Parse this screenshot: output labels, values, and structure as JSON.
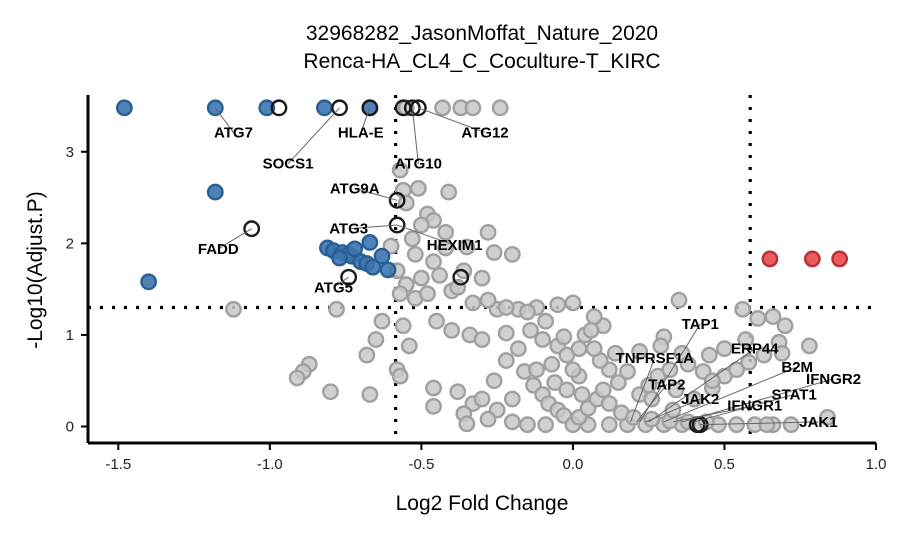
{
  "chart_data": {
    "type": "scatter",
    "title_lines": [
      "32968282_JasonMoffat_Nature_2020",
      "Renca-HA_CL4_C_Coculture-T_KIRC"
    ],
    "xlabel": "Log2 Fold Change",
    "ylabel": "-Log10(Adjust.P)",
    "xlim": [
      -1.6,
      1.0
    ],
    "ylim": [
      -0.18,
      3.62
    ],
    "xticks": [
      -1.5,
      -1.0,
      -0.5,
      0.0,
      0.5,
      1.0
    ],
    "xtick_labels": [
      "-1.5",
      "-1.0",
      "-0.5",
      "0.0",
      "0.5",
      "1.0"
    ],
    "yticks": [
      0,
      1,
      2,
      3
    ],
    "ytick_labels": [
      "0",
      "1",
      "2",
      "3"
    ],
    "thresholds": {
      "x": [
        -0.585,
        0.585
      ],
      "y": 1.3
    },
    "grid": false,
    "legend": "none",
    "colors": {
      "down": "#3a75ae",
      "up": "#e8484d",
      "ns": "#c8c8c8",
      "ns_edge": "#a0a0a0",
      "highlight_edge": "#1a1a1a"
    },
    "groups": [
      {
        "name": "down",
        "points": [
          [
            -1.48,
            3.48
          ],
          [
            -1.18,
            3.48
          ],
          [
            -1.01,
            3.48
          ],
          [
            -0.82,
            3.48
          ],
          [
            -0.67,
            3.48
          ],
          [
            -1.18,
            2.56
          ],
          [
            -0.81,
            1.95
          ],
          [
            -0.79,
            1.92
          ],
          [
            -0.76,
            1.9
          ],
          [
            -0.74,
            1.88
          ],
          [
            -0.73,
            1.86
          ],
          [
            -0.72,
            1.94
          ],
          [
            -0.7,
            1.8
          ],
          [
            -0.68,
            1.78
          ],
          [
            -0.66,
            1.74
          ],
          [
            -0.67,
            2.01
          ],
          [
            -0.61,
            1.71
          ],
          [
            -0.63,
            1.86
          ],
          [
            -1.4,
            1.58
          ],
          [
            -0.77,
            1.84
          ]
        ]
      },
      {
        "name": "up",
        "points": [
          [
            0.65,
            1.83
          ],
          [
            0.79,
            1.83
          ],
          [
            0.88,
            1.83
          ]
        ]
      },
      {
        "name": "ns",
        "points": [
          [
            -0.55,
            3.48
          ],
          [
            -0.37,
            3.48
          ],
          [
            -0.33,
            3.48
          ],
          [
            -0.24,
            3.48
          ],
          [
            -0.43,
            3.48
          ],
          [
            -0.57,
            2.8
          ],
          [
            -0.51,
            2.6
          ],
          [
            -0.41,
            2.56
          ],
          [
            -0.56,
            2.58
          ],
          [
            -0.55,
            2.44
          ],
          [
            -0.48,
            2.32
          ],
          [
            -0.46,
            2.25
          ],
          [
            -0.5,
            2.2
          ],
          [
            -0.53,
            2.05
          ],
          [
            -0.42,
            2.12
          ],
          [
            -0.28,
            2.12
          ],
          [
            -0.6,
            1.97
          ],
          [
            -0.42,
            1.95
          ],
          [
            -0.35,
            1.96
          ],
          [
            -0.26,
            1.9
          ],
          [
            -0.2,
            1.88
          ],
          [
            -0.58,
            1.7
          ],
          [
            -0.55,
            1.55
          ],
          [
            -0.5,
            1.62
          ],
          [
            -0.44,
            1.65
          ],
          [
            -0.36,
            1.7
          ],
          [
            -0.3,
            1.62
          ],
          [
            -0.57,
            1.45
          ],
          [
            -0.52,
            1.4
          ],
          [
            -0.48,
            1.45
          ],
          [
            -0.4,
            1.48
          ],
          [
            -0.33,
            1.35
          ],
          [
            -0.25,
            1.28
          ],
          [
            -0.18,
            1.28
          ],
          [
            -0.12,
            1.3
          ],
          [
            -0.05,
            1.33
          ],
          [
            0.0,
            1.35
          ],
          [
            -1.12,
            1.28
          ],
          [
            -0.78,
            1.28
          ],
          [
            -0.63,
            1.15
          ],
          [
            -0.56,
            1.1
          ],
          [
            -0.45,
            1.15
          ],
          [
            -0.4,
            1.05
          ],
          [
            -0.34,
            1.0
          ],
          [
            -0.3,
            0.95
          ],
          [
            -0.22,
            1.02
          ],
          [
            -0.14,
            1.05
          ],
          [
            -0.65,
            0.95
          ],
          [
            -0.68,
            0.78
          ],
          [
            -0.54,
            0.88
          ],
          [
            -0.58,
            0.62
          ],
          [
            -0.57,
            0.55
          ],
          [
            -0.87,
            0.68
          ],
          [
            -0.89,
            0.6
          ],
          [
            -0.91,
            0.53
          ],
          [
            -0.8,
            0.38
          ],
          [
            -0.67,
            0.35
          ],
          [
            -0.46,
            0.42
          ],
          [
            -0.38,
            0.38
          ],
          [
            -0.33,
            0.25
          ],
          [
            -0.46,
            0.22
          ],
          [
            -0.36,
            0.14
          ],
          [
            -0.3,
            0.3
          ],
          [
            -0.26,
            0.5
          ],
          [
            -0.22,
            0.72
          ],
          [
            -0.18,
            0.85
          ],
          [
            -0.1,
            0.95
          ],
          [
            -0.05,
            0.88
          ],
          [
            -0.02,
            0.78
          ],
          [
            -0.16,
            0.6
          ],
          [
            -0.13,
            0.45
          ],
          [
            -0.1,
            0.35
          ],
          [
            -0.08,
            0.25
          ],
          [
            -0.05,
            0.18
          ],
          [
            -0.03,
            0.12
          ],
          [
            -0.2,
            0.05
          ],
          [
            -0.15,
            0.02
          ],
          [
            -0.09,
            0.02
          ],
          [
            0.0,
            0.02
          ],
          [
            0.05,
            0.02
          ],
          [
            0.12,
            0.02
          ],
          [
            0.18,
            0.02
          ],
          [
            0.24,
            0.02
          ],
          [
            0.3,
            0.02
          ],
          [
            0.36,
            0.02
          ],
          [
            0.42,
            0.02
          ],
          [
            0.48,
            0.02
          ],
          [
            0.54,
            0.02
          ],
          [
            0.6,
            0.02
          ],
          [
            0.66,
            0.02
          ],
          [
            0.72,
            0.02
          ],
          [
            0.02,
            0.1
          ],
          [
            0.05,
            0.2
          ],
          [
            0.08,
            0.3
          ],
          [
            0.1,
            0.4
          ],
          [
            0.12,
            0.25
          ],
          [
            0.16,
            0.15
          ],
          [
            0.2,
            0.1
          ],
          [
            0.26,
            0.08
          ],
          [
            0.32,
            0.06
          ],
          [
            0.38,
            0.05
          ],
          [
            0.44,
            0.05
          ],
          [
            0.22,
            0.35
          ],
          [
            0.25,
            0.45
          ],
          [
            0.28,
            0.55
          ],
          [
            0.32,
            0.62
          ],
          [
            0.34,
            0.4
          ],
          [
            0.4,
            0.3
          ],
          [
            0.46,
            0.42
          ],
          [
            0.5,
            0.55
          ],
          [
            0.54,
            0.62
          ],
          [
            0.58,
            0.7
          ],
          [
            0.63,
            0.78
          ],
          [
            0.68,
            0.92
          ],
          [
            0.7,
            1.1
          ],
          [
            0.61,
            1.18
          ],
          [
            0.66,
            1.2
          ],
          [
            0.57,
            0.95
          ],
          [
            0.5,
            0.85
          ],
          [
            0.45,
            0.78
          ],
          [
            0.43,
            0.6
          ],
          [
            0.36,
            0.8
          ],
          [
            0.3,
            0.98
          ],
          [
            0.22,
            0.82
          ],
          [
            0.18,
            0.6
          ],
          [
            0.15,
            0.48
          ],
          [
            0.14,
            0.8
          ],
          [
            0.35,
            1.38
          ],
          [
            0.29,
            0.88
          ],
          [
            0.12,
            0.62
          ],
          [
            0.09,
            0.72
          ],
          [
            0.07,
            0.85
          ],
          [
            0.04,
            1.0
          ],
          [
            0.1,
            1.1
          ],
          [
            0.07,
            1.2
          ],
          [
            0.06,
            1.05
          ],
          [
            0.84,
            0.1
          ],
          [
            0.64,
            0.02
          ],
          [
            0.78,
            0.88
          ],
          [
            0.56,
            1.28
          ],
          [
            0.69,
            0.8
          ],
          [
            0.46,
            0.5
          ],
          [
            0.38,
            0.68
          ],
          [
            0.33,
            0.18
          ],
          [
            0.26,
            0.3
          ],
          [
            -0.06,
            0.48
          ],
          [
            -0.12,
            0.62
          ],
          [
            -0.2,
            0.3
          ],
          [
            -0.25,
            0.18
          ],
          [
            -0.28,
            0.08
          ],
          [
            -0.35,
            0.03
          ],
          [
            0.02,
            0.55
          ],
          [
            0.03,
            0.35
          ],
          [
            -0.02,
            0.4
          ],
          [
            -0.07,
            0.68
          ],
          [
            0.0,
            0.62
          ],
          [
            0.02,
            0.85
          ],
          [
            -0.03,
            0.98
          ],
          [
            -0.09,
            1.15
          ],
          [
            -0.15,
            1.25
          ],
          [
            -0.22,
            1.3
          ],
          [
            -0.28,
            1.38
          ],
          [
            -0.38,
            1.52
          ],
          [
            -0.46,
            1.8
          ],
          [
            -0.52,
            1.88
          ]
        ]
      },
      {
        "name": "highlight",
        "points": [
          [
            -0.97,
            3.48
          ],
          [
            -0.77,
            3.48
          ],
          [
            -0.67,
            3.48
          ],
          [
            -0.56,
            3.48
          ],
          [
            -0.53,
            3.48
          ],
          [
            -0.51,
            3.48
          ],
          [
            -1.06,
            2.16
          ],
          [
            -0.58,
            2.47
          ],
          [
            -0.58,
            2.2
          ],
          [
            -0.74,
            1.63
          ],
          [
            -0.37,
            1.63
          ],
          [
            0.41,
            0.02
          ],
          [
            0.42,
            0.02
          ]
        ]
      }
    ],
    "annotations": [
      {
        "text": "ATG7",
        "tx": -1.12,
        "ty": 3.21,
        "px": -1.18,
        "py": 3.48
      },
      {
        "text": "SOCS1",
        "tx": -0.94,
        "ty": 2.87,
        "px": -0.77,
        "py": 3.48
      },
      {
        "text": "HLA-E",
        "tx": -0.7,
        "ty": 3.21,
        "px": -0.67,
        "py": 3.48
      },
      {
        "text": "ATG10",
        "tx": -0.51,
        "ty": 2.87,
        "px": -0.53,
        "py": 3.48
      },
      {
        "text": "ATG12",
        "tx": -0.29,
        "ty": 3.21,
        "px": -0.51,
        "py": 3.48
      },
      {
        "text": "ATG9A",
        "tx": -0.72,
        "ty": 2.6,
        "px": -0.58,
        "py": 2.47
      },
      {
        "text": "ATG3",
        "tx": -0.74,
        "ty": 2.16,
        "px": -0.58,
        "py": 2.2
      },
      {
        "text": "HEXIM1",
        "tx": -0.39,
        "ty": 1.98,
        "px": -0.58,
        "py": 2.2
      },
      {
        "text": "FADD",
        "tx": -1.17,
        "ty": 1.94,
        "px": -1.06,
        "py": 2.16
      },
      {
        "text": "ATG5",
        "tx": -0.79,
        "ty": 1.52,
        "px": -0.74,
        "py": 1.63
      },
      {
        "text": "TAP1",
        "tx": 0.42,
        "ty": 1.12,
        "px": 0.22,
        "py": 0.05
      },
      {
        "text": "TNFRSF1A",
        "tx": 0.27,
        "ty": 0.75,
        "px": 0.19,
        "py": 0.05
      },
      {
        "text": "ERP44",
        "tx": 0.6,
        "ty": 0.85,
        "px": 0.25,
        "py": 0.05
      },
      {
        "text": "TAP2",
        "tx": 0.31,
        "ty": 0.46,
        "px": 0.21,
        "py": 0.05
      },
      {
        "text": "JAK2",
        "tx": 0.42,
        "ty": 0.3,
        "px": 0.24,
        "py": 0.05
      },
      {
        "text": "B2M",
        "tx": 0.74,
        "ty": 0.65,
        "px": 0.3,
        "py": 0.05
      },
      {
        "text": "IFNGR2",
        "tx": 0.86,
        "ty": 0.52,
        "px": 0.36,
        "py": 0.05
      },
      {
        "text": "STAT1",
        "tx": 0.73,
        "ty": 0.35,
        "px": 0.4,
        "py": 0.05
      },
      {
        "text": "IFNGR1",
        "tx": 0.6,
        "ty": 0.23,
        "px": 0.33,
        "py": 0.05
      },
      {
        "text": "JAK1",
        "tx": 0.81,
        "ty": 0.05,
        "px": 0.42,
        "py": 0.02
      }
    ]
  }
}
